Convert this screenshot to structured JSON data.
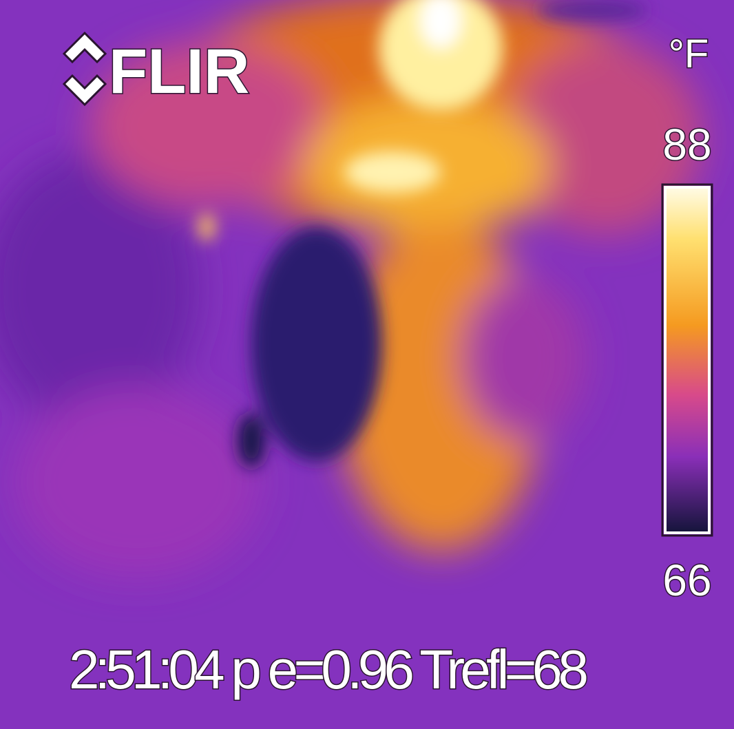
{
  "logo": "FLIR",
  "scale": {
    "unit": "°F",
    "max": 88,
    "min": 66
  },
  "status": "2:51:04 p e=0.96 Trefl=68"
}
